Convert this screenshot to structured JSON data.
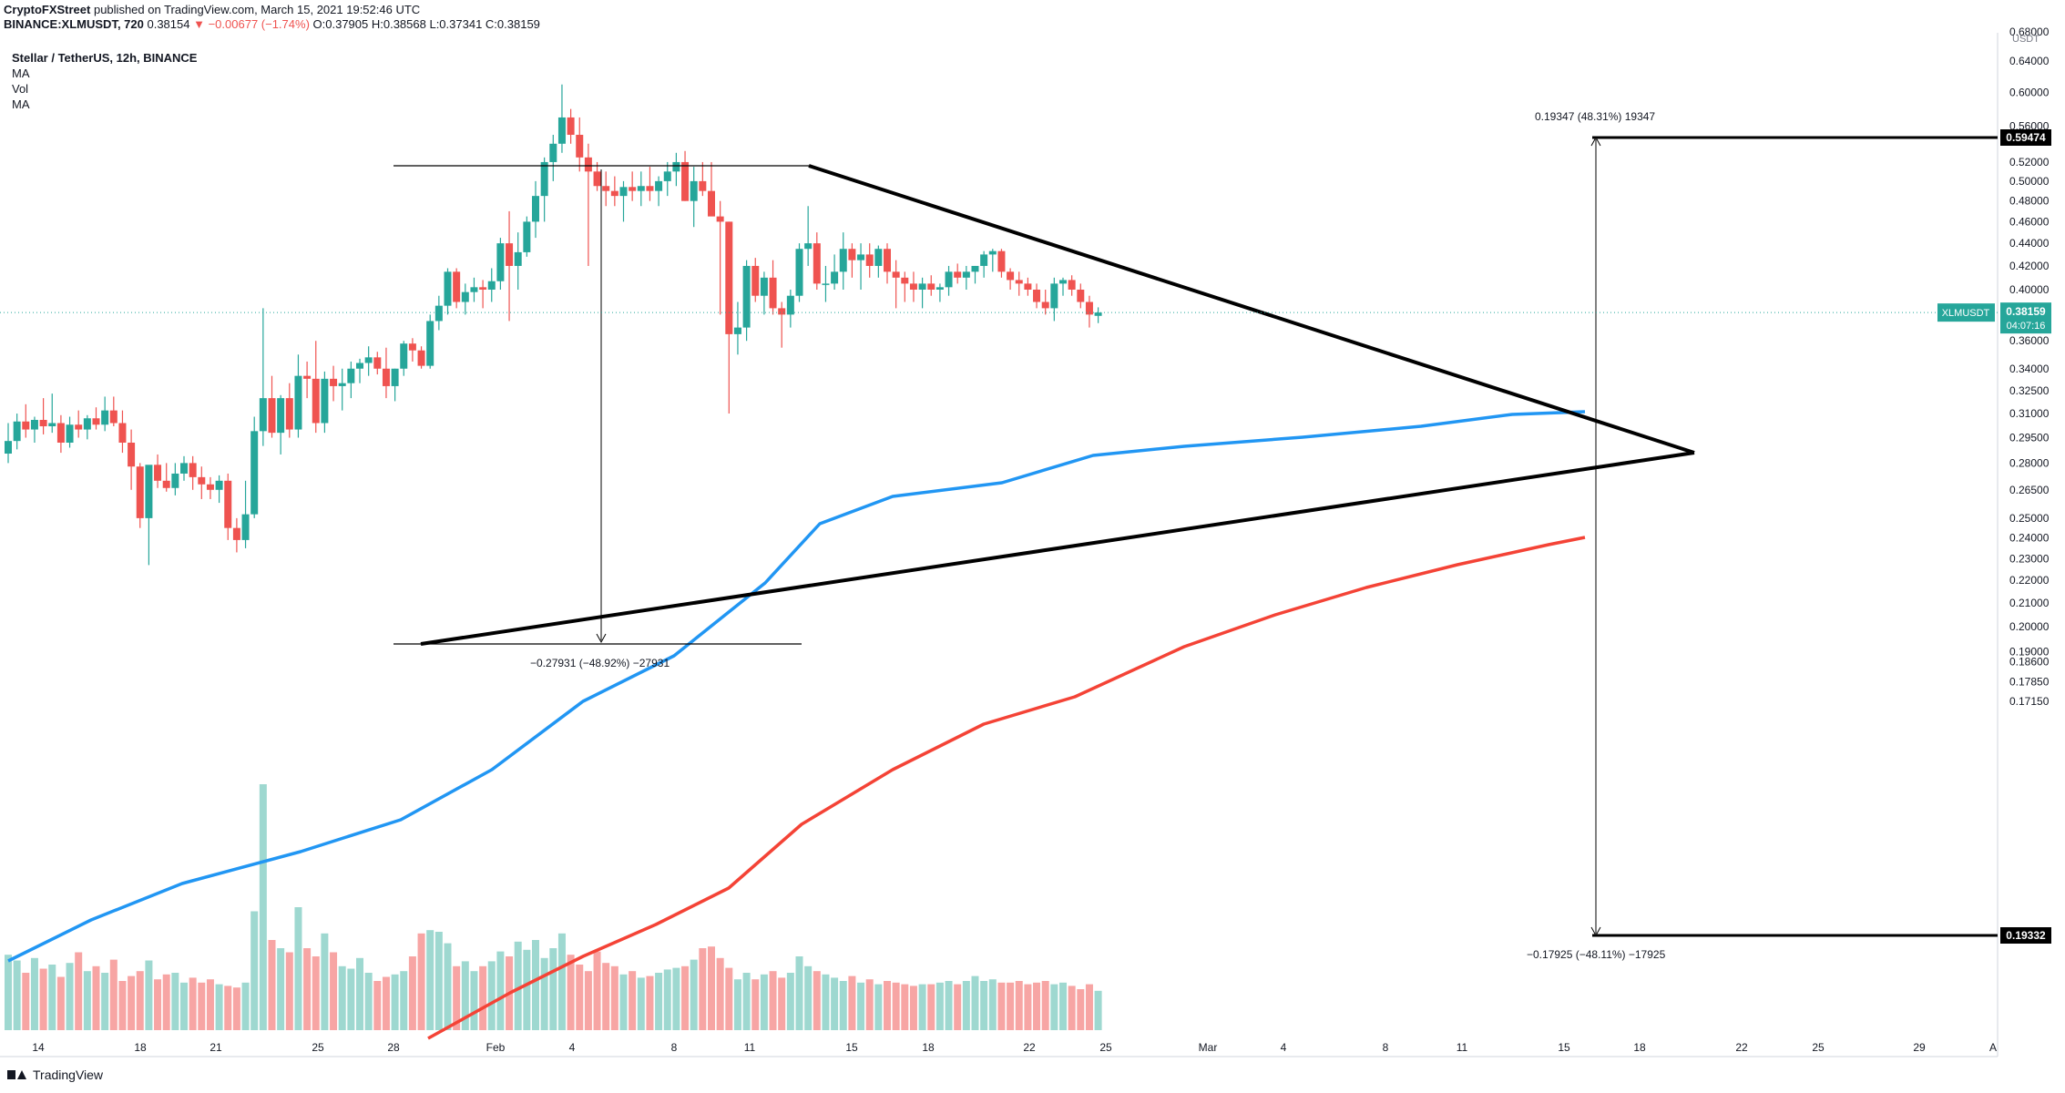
{
  "header": {
    "publisher": "CryptoFXStreet",
    "published_text": " published on TradingView.com, March 15, 2021 19:52:46 UTC",
    "ticker": "BINANCE:XLMUSDT, 720",
    "last": "0.38154",
    "change": "▼ −0.00677 (−1.74%)",
    "ohlc": "O:0.37905 H:0.38568 L:0.37341 C:0.38159"
  },
  "legend": {
    "title": "Stellar / TetherUS, 12h, BINANCE",
    "items": [
      "MA",
      "Vol",
      "MA"
    ]
  },
  "footer": {
    "brand": "TradingView"
  },
  "colors": {
    "up": "#26a69a",
    "down": "#ef5350",
    "ma_fast": "#2196f3",
    "ma_slow": "#f44336",
    "vol_up": "#9ed8d0",
    "vol_down": "#f7a5a4",
    "price_label": "#26a69a"
  },
  "chart_data": {
    "type": "candlestick",
    "title": "Stellar / TetherUS, 12h, BINANCE",
    "symbol": "XLMUSDT",
    "currency": "USDT",
    "x_ticks": [
      "14",
      "18",
      "21",
      "25",
      "28",
      "Feb",
      "4",
      "8",
      "11",
      "15",
      "18",
      "22",
      "25",
      "Mar",
      "4",
      "8",
      "11",
      "15",
      "18",
      "22",
      "25",
      "29",
      "A"
    ],
    "y_ticks": [
      "0.68000",
      "0.64000",
      "0.60000",
      "0.56000",
      "0.52000",
      "0.50000",
      "0.48000",
      "0.46000",
      "0.44000",
      "0.42000",
      "0.40000",
      "0.38000",
      "0.36000",
      "0.34000",
      "0.32500",
      "0.31000",
      "0.29500",
      "0.28000",
      "0.26500",
      "0.25000",
      "0.24000",
      "0.23000",
      "0.22000",
      "0.21000",
      "0.20000",
      "0.19000",
      "0.18600",
      "0.17850",
      "0.17150"
    ],
    "y_scale": "log",
    "current_price": {
      "label": "XLMUSDT",
      "value": "0.38159",
      "countdown": "04:07:16"
    },
    "price_tags": [
      "0.59474",
      "0.19332"
    ],
    "annotations": {
      "measure_up": "0.19347 (48.31%) 19347",
      "measure_down": "−0.17925 (−48.11%) −17925",
      "measure_pole": "−0.27931 (−48.92%) −27931"
    },
    "candles_ohlc": [
      [
        0.2855,
        0.304,
        0.28,
        0.293
      ],
      [
        0.293,
        0.31,
        0.288,
        0.305
      ],
      [
        0.305,
        0.316,
        0.295,
        0.3
      ],
      [
        0.3,
        0.308,
        0.292,
        0.306
      ],
      [
        0.306,
        0.32,
        0.297,
        0.302
      ],
      [
        0.302,
        0.323,
        0.298,
        0.304
      ],
      [
        0.304,
        0.309,
        0.286,
        0.292
      ],
      [
        0.292,
        0.308,
        0.289,
        0.303
      ],
      [
        0.303,
        0.312,
        0.295,
        0.3
      ],
      [
        0.3,
        0.309,
        0.294,
        0.307
      ],
      [
        0.307,
        0.314,
        0.3,
        0.303
      ],
      [
        0.303,
        0.321,
        0.299,
        0.312
      ],
      [
        0.312,
        0.321,
        0.302,
        0.304
      ],
      [
        0.304,
        0.312,
        0.286,
        0.292
      ],
      [
        0.292,
        0.3,
        0.265,
        0.278
      ],
      [
        0.278,
        0.28,
        0.245,
        0.25
      ],
      [
        0.25,
        0.275,
        0.227,
        0.279
      ],
      [
        0.279,
        0.285,
        0.266,
        0.27
      ],
      [
        0.27,
        0.28,
        0.264,
        0.266
      ],
      [
        0.266,
        0.28,
        0.262,
        0.274
      ],
      [
        0.274,
        0.284,
        0.27,
        0.28
      ],
      [
        0.28,
        0.284,
        0.265,
        0.272
      ],
      [
        0.272,
        0.278,
        0.26,
        0.268
      ],
      [
        0.268,
        0.272,
        0.26,
        0.265
      ],
      [
        0.265,
        0.273,
        0.258,
        0.27
      ],
      [
        0.27,
        0.274,
        0.239,
        0.245
      ],
      [
        0.245,
        0.25,
        0.233,
        0.239
      ],
      [
        0.239,
        0.27,
        0.235,
        0.252
      ],
      [
        0.252,
        0.308,
        0.25,
        0.299
      ],
      [
        0.299,
        0.385,
        0.29,
        0.32
      ],
      [
        0.32,
        0.335,
        0.295,
        0.298
      ],
      [
        0.298,
        0.322,
        0.285,
        0.32
      ],
      [
        0.32,
        0.33,
        0.295,
        0.3
      ],
      [
        0.3,
        0.35,
        0.295,
        0.335
      ],
      [
        0.335,
        0.345,
        0.32,
        0.333
      ],
      [
        0.333,
        0.36,
        0.298,
        0.304
      ],
      [
        0.304,
        0.338,
        0.298,
        0.333
      ],
      [
        0.333,
        0.342,
        0.318,
        0.328
      ],
      [
        0.328,
        0.34,
        0.312,
        0.33
      ],
      [
        0.33,
        0.345,
        0.32,
        0.34
      ],
      [
        0.34,
        0.347,
        0.33,
        0.344
      ],
      [
        0.344,
        0.356,
        0.335,
        0.348
      ],
      [
        0.348,
        0.352,
        0.336,
        0.34
      ],
      [
        0.34,
        0.355,
        0.32,
        0.328
      ],
      [
        0.328,
        0.34,
        0.318,
        0.34
      ],
      [
        0.34,
        0.36,
        0.335,
        0.358
      ],
      [
        0.358,
        0.362,
        0.345,
        0.353
      ],
      [
        0.353,
        0.356,
        0.34,
        0.342
      ],
      [
        0.342,
        0.38,
        0.34,
        0.375
      ],
      [
        0.375,
        0.395,
        0.368,
        0.387
      ],
      [
        0.387,
        0.418,
        0.38,
        0.415
      ],
      [
        0.415,
        0.418,
        0.385,
        0.39
      ],
      [
        0.39,
        0.405,
        0.38,
        0.398
      ],
      [
        0.398,
        0.41,
        0.39,
        0.402
      ],
      [
        0.402,
        0.408,
        0.385,
        0.4
      ],
      [
        0.4,
        0.418,
        0.39,
        0.407
      ],
      [
        0.407,
        0.445,
        0.4,
        0.44
      ],
      [
        0.44,
        0.47,
        0.375,
        0.42
      ],
      [
        0.42,
        0.45,
        0.4,
        0.432
      ],
      [
        0.432,
        0.465,
        0.428,
        0.46
      ],
      [
        0.46,
        0.5,
        0.445,
        0.485
      ],
      [
        0.485,
        0.525,
        0.46,
        0.52
      ],
      [
        0.52,
        0.55,
        0.5,
        0.54
      ],
      [
        0.54,
        0.61,
        0.53,
        0.57
      ],
      [
        0.57,
        0.58,
        0.54,
        0.55
      ],
      [
        0.55,
        0.57,
        0.51,
        0.525
      ],
      [
        0.525,
        0.54,
        0.42,
        0.51
      ],
      [
        0.51,
        0.52,
        0.49,
        0.495
      ],
      [
        0.495,
        0.51,
        0.475,
        0.49
      ],
      [
        0.49,
        0.505,
        0.475,
        0.485
      ],
      [
        0.485,
        0.5,
        0.46,
        0.494
      ],
      [
        0.494,
        0.51,
        0.48,
        0.49
      ],
      [
        0.49,
        0.51,
        0.475,
        0.495
      ],
      [
        0.495,
        0.515,
        0.48,
        0.49
      ],
      [
        0.49,
        0.505,
        0.475,
        0.5
      ],
      [
        0.5,
        0.52,
        0.485,
        0.51
      ],
      [
        0.51,
        0.53,
        0.495,
        0.52
      ],
      [
        0.52,
        0.532,
        0.48,
        0.48
      ],
      [
        0.48,
        0.515,
        0.455,
        0.5
      ],
      [
        0.5,
        0.52,
        0.485,
        0.49
      ],
      [
        0.49,
        0.52,
        0.47,
        0.465
      ],
      [
        0.465,
        0.48,
        0.38,
        0.46
      ],
      [
        0.46,
        0.46,
        0.31,
        0.365
      ],
      [
        0.365,
        0.39,
        0.35,
        0.37
      ],
      [
        0.37,
        0.425,
        0.36,
        0.42
      ],
      [
        0.42,
        0.427,
        0.39,
        0.395
      ],
      [
        0.395,
        0.415,
        0.38,
        0.41
      ],
      [
        0.41,
        0.425,
        0.38,
        0.385
      ],
      [
        0.385,
        0.39,
        0.355,
        0.38
      ],
      [
        0.38,
        0.4,
        0.37,
        0.395
      ],
      [
        0.395,
        0.44,
        0.39,
        0.435
      ],
      [
        0.435,
        0.475,
        0.42,
        0.44
      ],
      [
        0.44,
        0.45,
        0.4,
        0.405
      ],
      [
        0.405,
        0.42,
        0.39,
        0.405
      ],
      [
        0.405,
        0.43,
        0.4,
        0.415
      ],
      [
        0.415,
        0.45,
        0.4,
        0.435
      ],
      [
        0.435,
        0.44,
        0.41,
        0.425
      ],
      [
        0.425,
        0.44,
        0.4,
        0.43
      ],
      [
        0.43,
        0.44,
        0.41,
        0.42
      ],
      [
        0.42,
        0.438,
        0.41,
        0.435
      ],
      [
        0.435,
        0.44,
        0.405,
        0.415
      ],
      [
        0.415,
        0.425,
        0.385,
        0.41
      ],
      [
        0.41,
        0.415,
        0.39,
        0.405
      ],
      [
        0.405,
        0.415,
        0.39,
        0.4
      ],
      [
        0.4,
        0.41,
        0.385,
        0.405
      ],
      [
        0.405,
        0.412,
        0.395,
        0.4
      ],
      [
        0.4,
        0.405,
        0.39,
        0.402
      ],
      [
        0.402,
        0.42,
        0.395,
        0.415
      ],
      [
        0.415,
        0.422,
        0.405,
        0.41
      ],
      [
        0.41,
        0.42,
        0.4,
        0.415
      ],
      [
        0.415,
        0.42,
        0.405,
        0.42
      ],
      [
        0.42,
        0.433,
        0.41,
        0.43
      ],
      [
        0.43,
        0.435,
        0.415,
        0.433
      ],
      [
        0.433,
        0.435,
        0.41,
        0.415
      ],
      [
        0.415,
        0.418,
        0.4,
        0.408
      ],
      [
        0.408,
        0.415,
        0.395,
        0.405
      ],
      [
        0.405,
        0.41,
        0.395,
        0.4
      ],
      [
        0.4,
        0.405,
        0.385,
        0.39
      ],
      [
        0.39,
        0.4,
        0.38,
        0.385
      ],
      [
        0.385,
        0.41,
        0.375,
        0.405
      ],
      [
        0.405,
        0.41,
        0.395,
        0.408
      ],
      [
        0.408,
        0.412,
        0.395,
        0.4
      ],
      [
        0.4,
        0.405,
        0.385,
        0.39
      ],
      [
        0.39,
        0.395,
        0.37,
        0.38
      ],
      [
        0.379,
        0.3857,
        0.3734,
        0.3816
      ]
    ],
    "volumes": [
      92,
      85,
      70,
      88,
      75,
      80,
      65,
      82,
      95,
      72,
      78,
      70,
      86,
      60,
      66,
      72,
      85,
      62,
      68,
      70,
      58,
      64,
      58,
      62,
      56,
      54,
      52,
      58,
      145,
      300,
      110,
      100,
      95,
      150,
      100,
      90,
      118,
      95,
      78,
      75,
      88,
      70,
      60,
      65,
      68,
      72,
      90,
      118,
      122,
      120,
      106,
      78,
      84,
      72,
      78,
      84,
      96,
      90,
      108,
      98,
      110,
      88,
      100,
      118,
      92,
      80,
      72,
      96,
      82,
      78,
      68,
      72,
      64,
      66,
      70,
      74,
      76,
      78,
      86,
      100,
      102,
      88,
      76,
      62,
      70,
      62,
      68,
      72,
      64,
      70,
      90,
      78,
      72,
      68,
      64,
      60,
      66,
      58,
      62,
      56,
      60,
      58,
      56,
      54,
      56,
      56,
      58,
      60,
      56,
      60,
      66,
      60,
      62,
      58,
      58,
      60,
      56,
      58,
      60,
      56,
      58,
      54,
      50,
      56,
      48
    ]
  }
}
